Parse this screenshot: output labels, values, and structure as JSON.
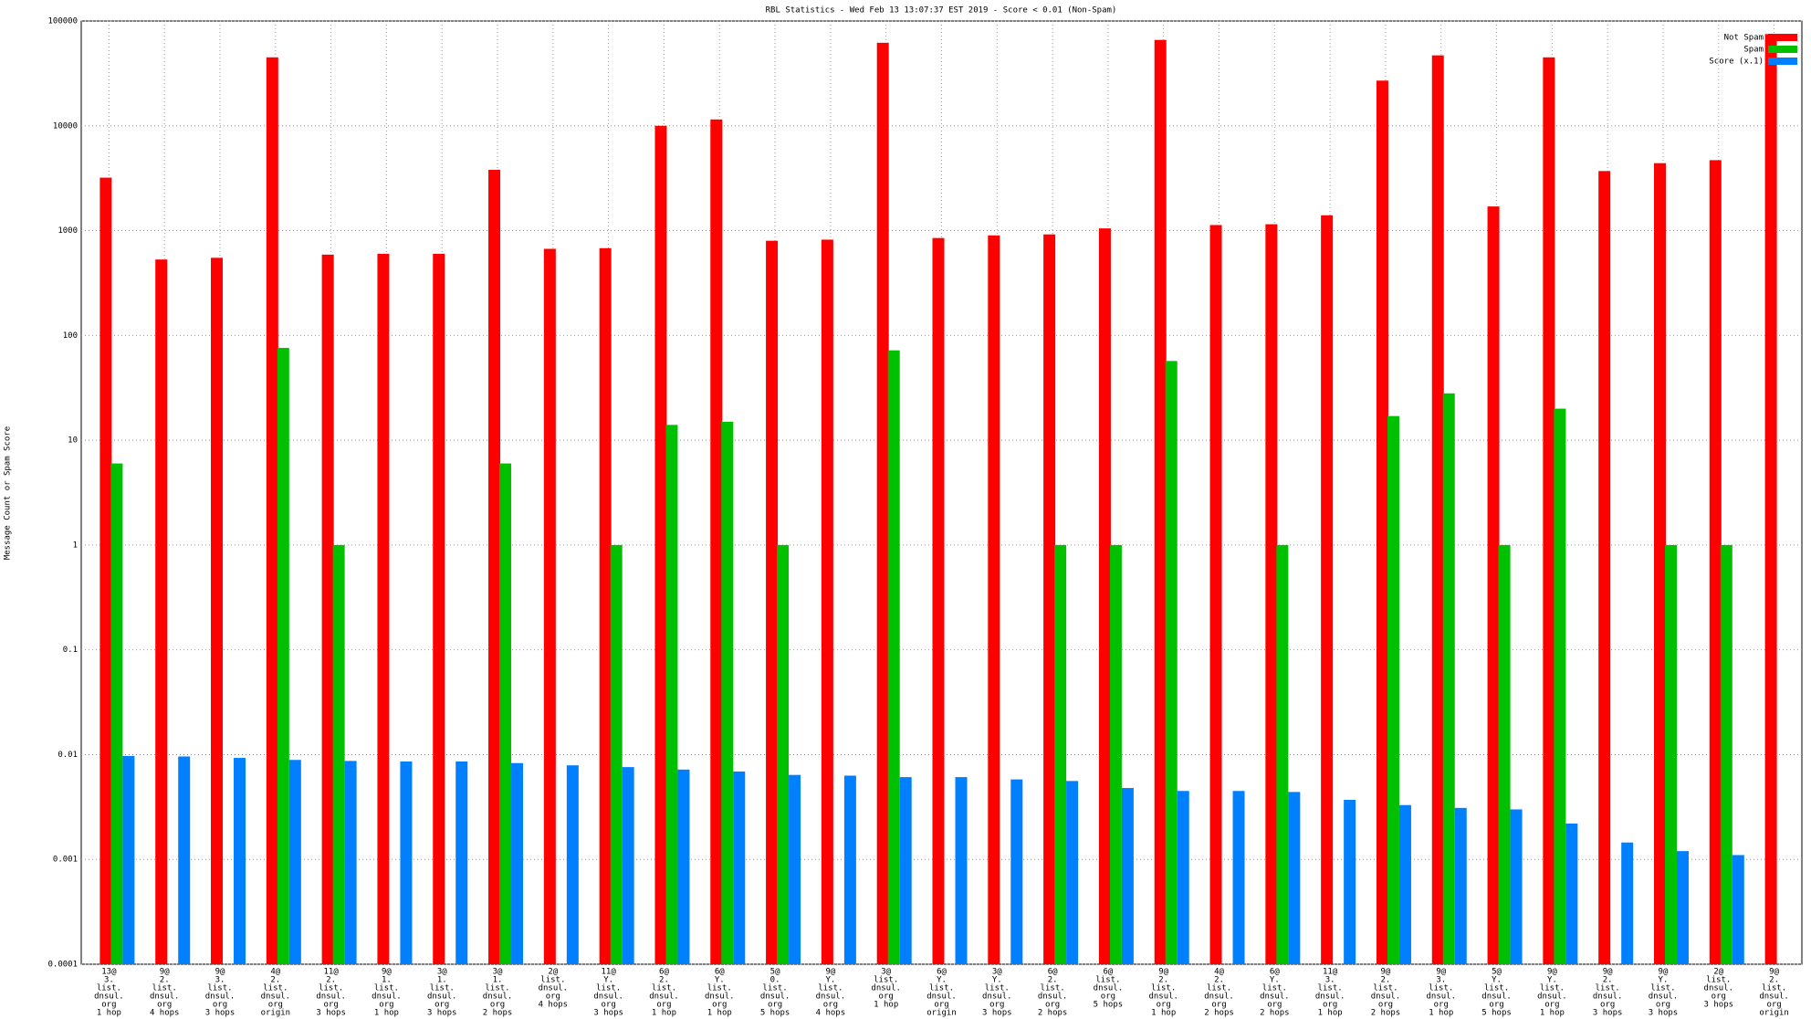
{
  "chart_data": {
    "type": "bar",
    "title": "RBL Statistics - Wed Feb 13 13:07:37 EST 2019 - Score < 0.01 (Non-Spam)",
    "y_label": "Message Count or Spam Score",
    "categories": [
      [
        "13@",
        "3.",
        "list.",
        "dnsul.",
        "org",
        "1 hop"
      ],
      [
        "9@",
        "2.",
        "list.",
        "dnsul.",
        "org",
        "4 hops"
      ],
      [
        "9@",
        "3.",
        "list.",
        "dnsul.",
        "org",
        "3 hops"
      ],
      [
        "4@",
        "2.",
        "list.",
        "dnsul.",
        "org",
        "origin"
      ],
      [
        "11@",
        "2.",
        "list.",
        "dnsul.",
        "org",
        "3 hops"
      ],
      [
        "9@",
        "1.",
        "list.",
        "dnsul.",
        "org",
        "1 hop"
      ],
      [
        "3@",
        "1.",
        "list.",
        "dnsul.",
        "org",
        "3 hops"
      ],
      [
        "3@",
        "1.",
        "list.",
        "dnsul.",
        "org",
        "2 hops"
      ],
      [
        "2@",
        "list.",
        "dnsul.",
        "org",
        "4 hops"
      ],
      [
        "11@",
        "Y.",
        "list.",
        "dnsul.",
        "org",
        "3 hops"
      ],
      [
        "6@",
        "2.",
        "list.",
        "dnsul.",
        "org",
        "1 hop"
      ],
      [
        "6@",
        "Y.",
        "list.",
        "dnsul.",
        "org",
        "1 hop"
      ],
      [
        "5@",
        "0.",
        "list.",
        "dnsul.",
        "org",
        "5 hops"
      ],
      [
        "9@",
        "Y.",
        "list.",
        "dnsul.",
        "org",
        "4 hops"
      ],
      [
        "3@",
        "list.",
        "dnsul.",
        "org",
        "1 hop"
      ],
      [
        "6@",
        "Y.",
        "list.",
        "dnsul.",
        "org",
        "origin"
      ],
      [
        "3@",
        "Y.",
        "list.",
        "dnsul.",
        "org",
        "3 hops"
      ],
      [
        "6@",
        "2.",
        "list.",
        "dnsul.",
        "org",
        "2 hops"
      ],
      [
        "6@",
        "list.",
        "dnsul.",
        "org",
        "5 hops"
      ],
      [
        "9@",
        "2.",
        "list.",
        "dnsul.",
        "org",
        "1 hop"
      ],
      [
        "4@",
        "2.",
        "list.",
        "dnsul.",
        "org",
        "2 hops"
      ],
      [
        "6@",
        "Y.",
        "list.",
        "dnsul.",
        "org",
        "2 hops"
      ],
      [
        "11@",
        "3.",
        "list.",
        "dnsul.",
        "org",
        "1 hop"
      ],
      [
        "9@",
        "2.",
        "list.",
        "dnsul.",
        "org",
        "2 hops"
      ],
      [
        "9@",
        "3.",
        "list.",
        "dnsul.",
        "org",
        "1 hop"
      ],
      [
        "5@",
        "Y.",
        "list.",
        "dnsul.",
        "org",
        "5 hops"
      ],
      [
        "9@",
        "Y.",
        "list.",
        "dnsul.",
        "org",
        "1 hop"
      ],
      [
        "9@",
        "2.",
        "list.",
        "dnsul.",
        "org",
        "3 hops"
      ],
      [
        "9@",
        "Y.",
        "list.",
        "dnsul.",
        "org",
        "3 hops"
      ],
      [
        "2@",
        "list.",
        "dnsul.",
        "org",
        "3 hops"
      ],
      [
        "9@",
        "2.",
        "list.",
        "dnsul.",
        "org",
        "origin"
      ]
    ],
    "series": [
      {
        "name": "Not Spam",
        "color": "#ff0000",
        "values": [
          3200,
          530,
          550,
          45000,
          590,
          600,
          600,
          3800,
          670,
          680,
          10000,
          11500,
          800,
          820,
          62000,
          850,
          900,
          920,
          1050,
          66000,
          1130,
          1150,
          1400,
          27000,
          47000,
          1700,
          45000,
          3700,
          4400,
          4700,
          75000
        ]
      },
      {
        "name": "Spam",
        "color": "#00c000",
        "values": [
          6,
          null,
          null,
          76,
          1,
          null,
          null,
          6,
          null,
          1,
          14,
          15,
          1,
          null,
          72,
          null,
          null,
          1,
          1,
          57,
          null,
          1,
          null,
          17,
          28,
          1,
          20,
          null,
          1,
          1,
          null
        ]
      },
      {
        "name": "Score (x.1)",
        "color": "#0080ff",
        "values": [
          0.0097,
          0.0096,
          0.0093,
          0.0089,
          0.0087,
          0.0086,
          0.0086,
          0.0083,
          0.0079,
          0.0076,
          0.0072,
          0.0069,
          0.0064,
          0.0063,
          0.0061,
          0.0061,
          0.0058,
          0.0056,
          0.0048,
          0.0045,
          0.0045,
          0.0044,
          0.0037,
          0.0033,
          0.0031,
          0.003,
          0.0022,
          0.00145,
          0.0012,
          0.0011,
          null
        ]
      }
    ],
    "ylim": [
      0.0001,
      100000
    ],
    "yticks": [
      0.0001,
      0.001,
      0.01,
      0.1,
      1,
      10,
      100,
      1000,
      10000,
      100000
    ],
    "log_scale": true,
    "grid": true,
    "legend": "top-right"
  }
}
